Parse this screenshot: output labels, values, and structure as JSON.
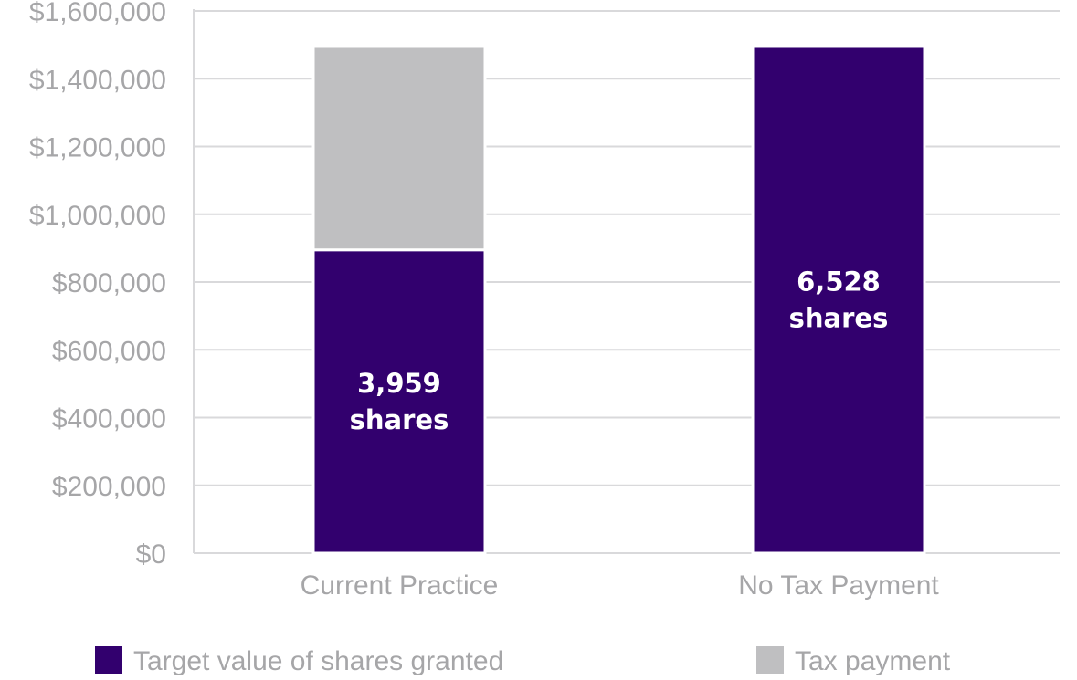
{
  "chart_data": {
    "type": "bar",
    "stacked": true,
    "categories": [
      "Current Practice",
      "No Tax Payment"
    ],
    "series": [
      {
        "name": "Target value of shares granted",
        "values": [
          895000,
          1495000
        ],
        "color": "#32006e"
      },
      {
        "name": "Tax payment",
        "values": [
          600000,
          0
        ],
        "color": "#bfbfc1"
      }
    ],
    "bar_labels": [
      {
        "category": "Current Practice",
        "lines": [
          "3,959",
          "shares"
        ]
      },
      {
        "category": "No Tax Payment",
        "lines": [
          "6,528",
          "shares"
        ]
      }
    ],
    "ylim": [
      0,
      1600000
    ],
    "yticks": [
      0,
      200000,
      400000,
      600000,
      800000,
      1000000,
      1200000,
      1400000,
      1600000
    ],
    "ytick_labels": [
      "$0",
      "$200,000",
      "$400,000",
      "$600,000",
      "$800,000",
      "$1,000,000",
      "$1,200,000",
      "$1,400,000",
      "$1,600,000"
    ],
    "grid": true,
    "legend_position": "bottom"
  }
}
